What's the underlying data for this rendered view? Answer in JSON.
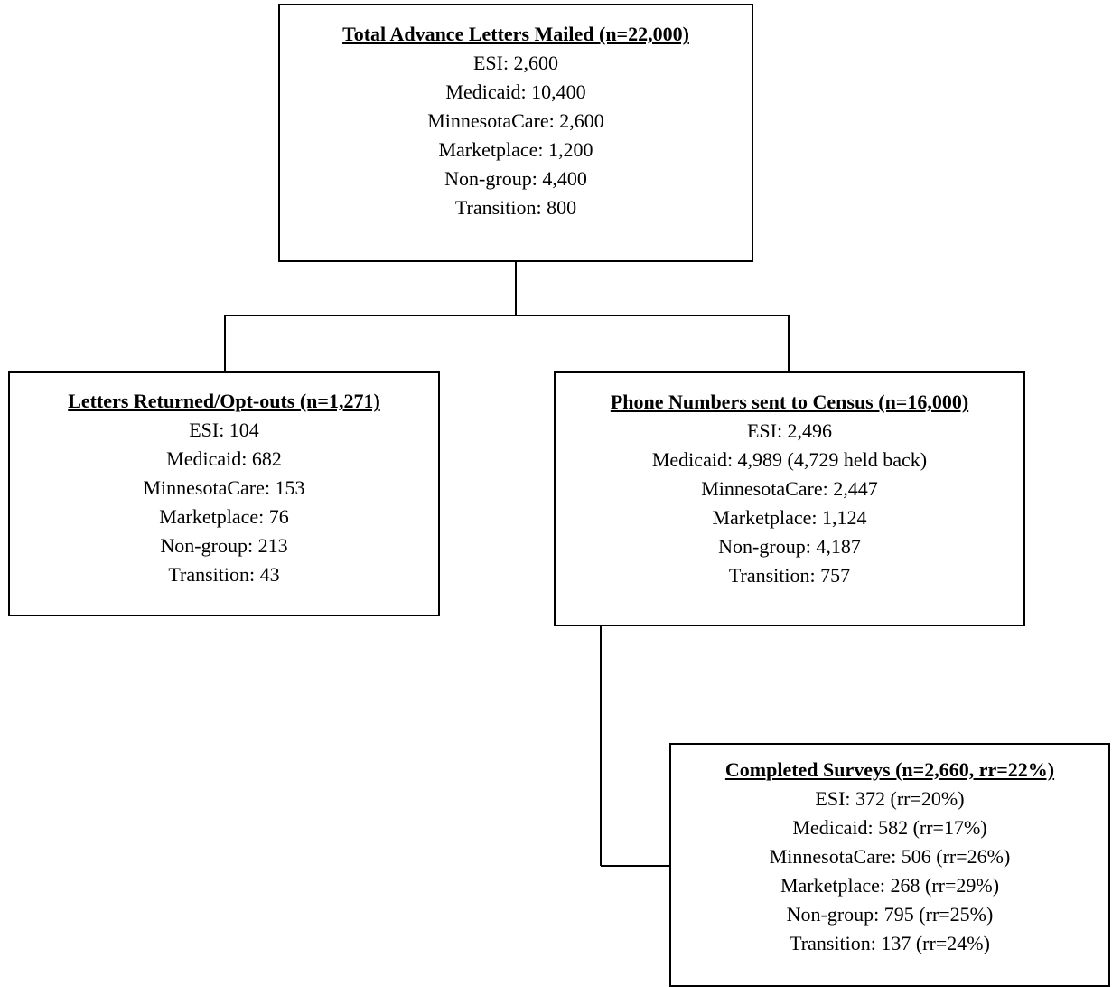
{
  "nodes": {
    "total": {
      "title": "Total Advance Letters Mailed (n=22,000)",
      "lines": [
        "ESI: 2,600",
        "Medicaid: 10,400",
        "MinnesotaCare: 2,600",
        "Marketplace: 1,200",
        "Non-group: 4,400",
        "Transition: 800"
      ]
    },
    "returned": {
      "title": "Letters Returned/Opt-outs (n=1,271)",
      "lines": [
        "ESI: 104",
        "Medicaid: 682",
        "MinnesotaCare: 153",
        "Marketplace: 76",
        "Non-group: 213",
        "Transition: 43"
      ]
    },
    "census": {
      "title": "Phone Numbers sent to Census (n=16,000)",
      "lines": [
        "ESI: 2,496",
        "Medicaid: 4,989 (4,729 held back)",
        "MinnesotaCare: 2,447",
        "Marketplace: 1,124",
        "Non-group: 4,187",
        "Transition: 757"
      ]
    },
    "completed": {
      "title": "Completed Surveys (n=2,660, rr=22%)",
      "lines": [
        "ESI: 372 (rr=20%)",
        "Medicaid: 582 (rr=17%)",
        "MinnesotaCare: 506 (rr=26%)",
        "Marketplace: 268 (rr=29%)",
        "Non-group: 795 (rr=25%)",
        "Transition: 137 (rr=24%)"
      ]
    }
  }
}
